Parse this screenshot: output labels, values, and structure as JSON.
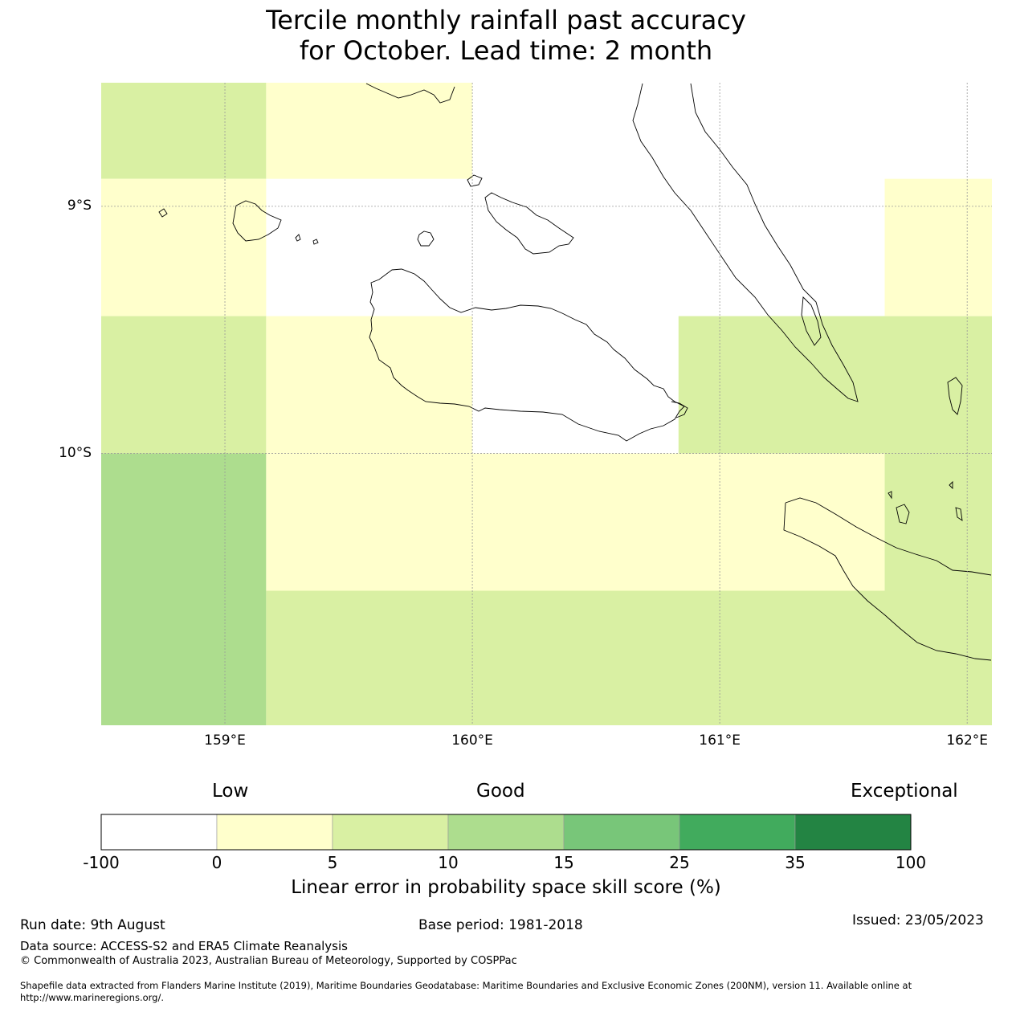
{
  "title": {
    "line1": "Tercile monthly rainfall past accuracy",
    "line2": "for October. Lead time: 2 month"
  },
  "map": {
    "lon_range": [
      158.5,
      162.1
    ],
    "lat_range": [
      -11.1,
      -8.5
    ],
    "x_ticks": [
      {
        "value": 159,
        "label": "159°E"
      },
      {
        "value": 160,
        "label": "160°E"
      },
      {
        "value": 161,
        "label": "161°E"
      },
      {
        "value": 162,
        "label": "162°E"
      }
    ],
    "y_ticks": [
      {
        "value": -9,
        "label": "9°S"
      },
      {
        "value": -10,
        "label": "10°S"
      }
    ],
    "grid": true,
    "cells": [
      {
        "lon": [
          158.5,
          159.1667
        ],
        "lat": [
          -8.8889,
          -8.5
        ],
        "bin": 2
      },
      {
        "lon": [
          158.5,
          159.1667
        ],
        "lat": [
          -9.4444,
          -8.8889
        ],
        "bin": 1
      },
      {
        "lon": [
          158.5,
          159.1667
        ],
        "lat": [
          -10.0,
          -9.4444
        ],
        "bin": 2
      },
      {
        "lon": [
          158.5,
          159.1667
        ],
        "lat": [
          -11.1,
          -10.0
        ],
        "bin": 3
      },
      {
        "lon": [
          159.1667,
          160.0
        ],
        "lat": [
          -8.8889,
          -8.5
        ],
        "bin": 1
      },
      {
        "lon": [
          159.1667,
          160.0
        ],
        "lat": [
          -10.0,
          -9.4444
        ],
        "bin": 1
      },
      {
        "lon": [
          159.1667,
          161.6667
        ],
        "lat": [
          -10.5556,
          -10.0
        ],
        "bin": 1
      },
      {
        "lon": [
          160.8333,
          162.1
        ],
        "lat": [
          -10.0,
          -9.4444
        ],
        "bin": 2
      },
      {
        "lon": [
          161.6667,
          162.1
        ],
        "lat": [
          -9.4444,
          -8.8889
        ],
        "bin": 1
      },
      {
        "lon": [
          161.6667,
          162.1
        ],
        "lat": [
          -10.5556,
          -10.0
        ],
        "bin": 2
      },
      {
        "lon": [
          159.1667,
          162.1
        ],
        "lat": [
          -11.1,
          -10.5556
        ],
        "bin": 2
      }
    ]
  },
  "colorbar": {
    "bounds": [
      "-100",
      "0",
      "5",
      "10",
      "15",
      "25",
      "35",
      "100"
    ],
    "colors": [
      "#ffffff",
      "#ffffcc",
      "#d9f0a3",
      "#addd8e",
      "#78c679",
      "#41ab5d",
      "#238443"
    ],
    "categories": [
      "Low",
      "Good",
      "Exceptional"
    ],
    "label": "Linear error in probability space skill score (%)"
  },
  "footer": {
    "run_date": "Run date: 9th August",
    "base_period": "Base period: 1981-2018",
    "issued": "Issued: 23/05/2023",
    "data_source": "Data source: ACCESS-S2 and ERA5 Climate Reanalysis",
    "copyright": "© Commonwealth of Australia 2023, Australian Bureau of Meteorology, Supported by COSPPac",
    "shapefile_line1": "Shapefile data extracted from Flanders Marine Institute (2019), Maritime Boundaries Geodatabase: Maritime Boundaries and Exclusive Economic Zones (200NM), version 11. Available online at",
    "shapefile_line2": "http://www.marineregions.org/."
  }
}
